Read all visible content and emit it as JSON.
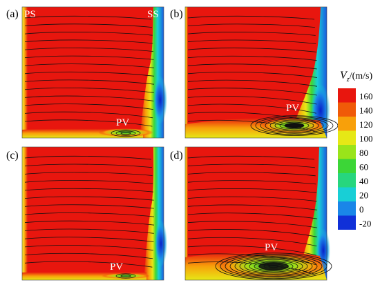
{
  "panels": [
    {
      "label": "(a)",
      "pv_label": "PV",
      "ps_label": "PS",
      "ss_label": "SS"
    },
    {
      "label": "(b)",
      "pv_label": "PV"
    },
    {
      "label": "(c)",
      "pv_label": "PV"
    },
    {
      "label": "(d)",
      "pv_label": "PV"
    }
  ],
  "colorbar": {
    "title_var": "V",
    "title_sub": "z",
    "title_unit": "/(m/s)",
    "ticks": [
      "160",
      "140",
      "120",
      "100",
      "80",
      "60",
      "40",
      "20",
      "0",
      "-20"
    ],
    "colors": [
      "#e8160e",
      "#f05a08",
      "#f8a00a",
      "#e6e816",
      "#9ae41a",
      "#3cd637",
      "#27d67e",
      "#18cfd6",
      "#1a86e8",
      "#1030d8"
    ]
  }
}
